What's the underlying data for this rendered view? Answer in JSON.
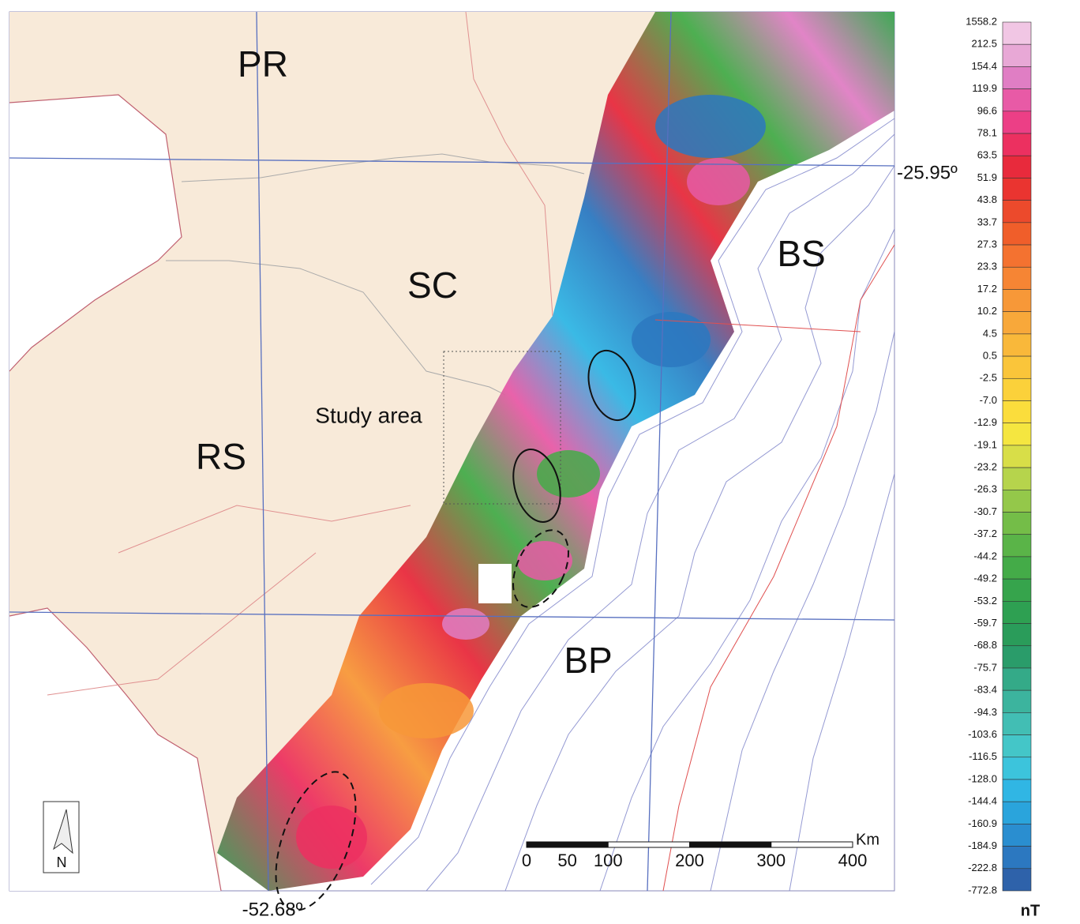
{
  "map": {
    "state_labels": [
      "PR",
      "SC",
      "RS"
    ],
    "basin_labels": [
      "BS",
      "BP"
    ],
    "study_area_label": "Study area",
    "latitude_label": "-25.95º",
    "longitude_label": "-52.68º",
    "north_label": "N"
  },
  "scale_bar": {
    "unit": "Km",
    "ticks": [
      0,
      50,
      100,
      200,
      300,
      400
    ]
  },
  "colorbar": {
    "unit": "nT",
    "labels": [
      "1558.2",
      "212.5",
      "154.4",
      "119.9",
      "96.6",
      "78.1",
      "63.5",
      "51.9",
      "43.8",
      "33.7",
      "27.3",
      "23.3",
      "17.2",
      "10.2",
      "4.5",
      "0.5",
      "-2.5",
      "-7.0",
      "-12.9",
      "-19.1",
      "-23.2",
      "-26.3",
      "-30.7",
      "-37.2",
      "-44.2",
      "-49.2",
      "-53.2",
      "-59.7",
      "-68.8",
      "-75.7",
      "-83.4",
      "-94.3",
      "-103.6",
      "-116.5",
      "-128.0",
      "-144.4",
      "-160.9",
      "-184.9",
      "-222.8",
      "-772.8"
    ],
    "colors": [
      "#f1c6e4",
      "#e8a8d6",
      "#e07ec4",
      "#e85aa6",
      "#ec3f86",
      "#ec3060",
      "#e82a3c",
      "#ea3430",
      "#ec4a2c",
      "#f05e2a",
      "#f47230",
      "#f68534",
      "#f79838",
      "#f8a83a",
      "#f9b83a",
      "#fac53a",
      "#fbd13a",
      "#fbdd3c",
      "#f5e640",
      "#d8de48",
      "#b6d44c",
      "#94c84a",
      "#74bd48",
      "#5ab448",
      "#44ab48",
      "#36a44c",
      "#2ea052",
      "#2a9c5a",
      "#2a9c6a",
      "#34aa88",
      "#3cb49e",
      "#42beb4",
      "#44c6c8",
      "#3cc4dc",
      "#30b6e4",
      "#2aa4dc",
      "#2a8ed0",
      "#2c78c0",
      "#2e62aa"
    ]
  }
}
